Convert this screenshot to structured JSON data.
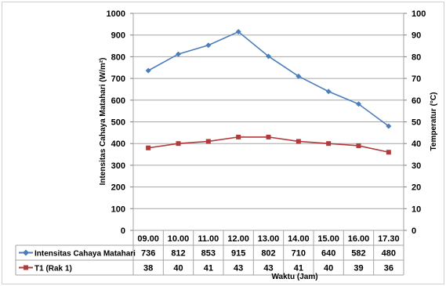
{
  "chart_data": {
    "type": "line",
    "title": "",
    "xlabel": "Waktu (Jam)",
    "categories": [
      "09.00",
      "10.00",
      "11.00",
      "12.00",
      "13.00",
      "14.00",
      "15.00",
      "16.00",
      "17.30"
    ],
    "y_left": {
      "label": "Intensitas Cahaya Matahari (W/m²)",
      "range": [
        0,
        1000
      ],
      "ticks": [
        0,
        100,
        200,
        300,
        400,
        500,
        600,
        700,
        800,
        900,
        1000
      ]
    },
    "y_right": {
      "label": "Temperatur (°C)",
      "range": [
        0,
        100
      ],
      "ticks": [
        0,
        10,
        20,
        30,
        40,
        50,
        60,
        70,
        80,
        90,
        100
      ]
    },
    "series": [
      {
        "name": "Intensitas Cahaya Matahari",
        "axis": "left",
        "color": "#4a7ebb",
        "marker": "diamond",
        "values": [
          736,
          812,
          853,
          915,
          802,
          710,
          640,
          582,
          480
        ]
      },
      {
        "name": "T1 (Rak 1)",
        "axis": "right",
        "color": "#b13a3a",
        "marker": "square",
        "values": [
          38,
          40,
          41,
          43,
          43,
          41,
          40,
          39,
          36
        ]
      }
    ],
    "grid": true,
    "legend": "data-table"
  }
}
